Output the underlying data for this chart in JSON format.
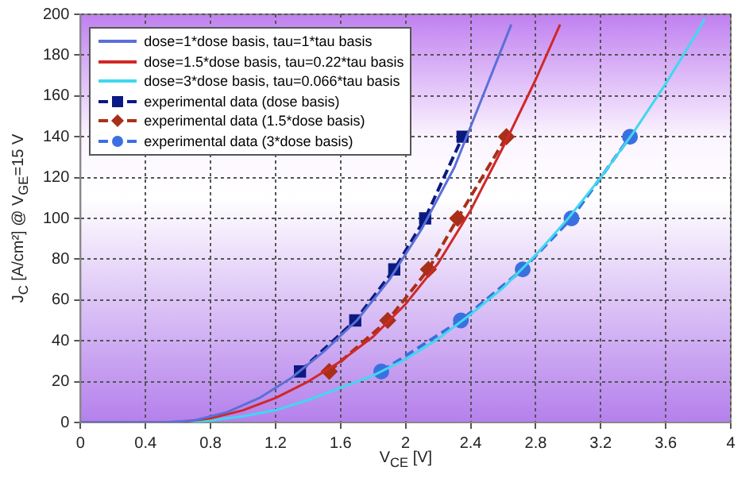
{
  "chart_data": {
    "type": "line",
    "xlabel": "V$_{CE}$ [V]",
    "ylabel": "J$_{C}$ [A/cm²] @ V$_{GE}$=15 V",
    "xlim": [
      0,
      4
    ],
    "xticks": [
      0,
      0.4,
      0.8,
      1.2,
      1.6,
      2,
      2.4,
      2.8,
      3.2,
      3.6,
      4
    ],
    "ylim": [
      0,
      200
    ],
    "yticks": [
      0,
      20,
      40,
      60,
      80,
      100,
      120,
      140,
      160,
      180,
      200
    ],
    "grid": true,
    "legend": "top left",
    "series": [
      {
        "name": "dose=1*dose basis, tau=1*tau basis",
        "color": "#5b6fd8",
        "marker": "none",
        "line_style": "solid",
        "x": [
          0,
          0.5,
          0.7,
          0.9,
          1.1,
          1.3,
          1.5,
          1.7,
          1.9,
          2.1,
          2.3,
          2.5,
          2.65
        ],
        "values": [
          0,
          0,
          1,
          5,
          12,
          22,
          35,
          50,
          70,
          95,
          125,
          165,
          195
        ]
      },
      {
        "name": "dose=1.5*dose basis, tau=0.22*tau basis",
        "color": "#d02828",
        "marker": "none",
        "line_style": "solid",
        "x": [
          0,
          0.6,
          0.8,
          1.0,
          1.2,
          1.4,
          1.6,
          1.8,
          2.0,
          2.2,
          2.4,
          2.6,
          2.8,
          2.95
        ],
        "values": [
          0,
          0,
          2,
          6,
          12,
          20,
          30,
          42,
          58,
          78,
          104,
          135,
          168,
          195
        ]
      },
      {
        "name": "dose=3*dose basis, tau=0.066*tau basis",
        "color": "#40d8f0",
        "marker": "none",
        "line_style": "solid",
        "x": [
          0,
          0.6,
          0.8,
          1.0,
          1.2,
          1.4,
          1.6,
          1.8,
          2.0,
          2.2,
          2.4,
          2.6,
          2.8,
          3.0,
          3.2,
          3.4,
          3.6,
          3.8,
          3.84
        ],
        "values": [
          0,
          0,
          1,
          3,
          6,
          11,
          17,
          23,
          31,
          41,
          53,
          66,
          82,
          100,
          120,
          142,
          166,
          192,
          198
        ]
      },
      {
        "name": "experimental data (dose basis)",
        "color": "#0a1a80",
        "marker": "square",
        "line_style": "dashed",
        "x": [
          1.35,
          1.69,
          1.93,
          2.12,
          2.35
        ],
        "values": [
          25,
          50,
          75,
          100,
          140
        ]
      },
      {
        "name": "experimental data (1.5*dose basis)",
        "color": "#a83018",
        "marker": "diamond",
        "line_style": "dashed",
        "x": [
          1.53,
          1.89,
          2.14,
          2.32,
          2.62
        ],
        "values": [
          25,
          50,
          75,
          100,
          140
        ]
      },
      {
        "name": "experimental data (3*dose basis)",
        "color": "#3a70e0",
        "marker": "circle",
        "line_style": "dashed",
        "x": [
          1.85,
          2.34,
          2.72,
          3.02,
          3.38
        ],
        "values": [
          25,
          50,
          75,
          100,
          140
        ]
      }
    ]
  }
}
